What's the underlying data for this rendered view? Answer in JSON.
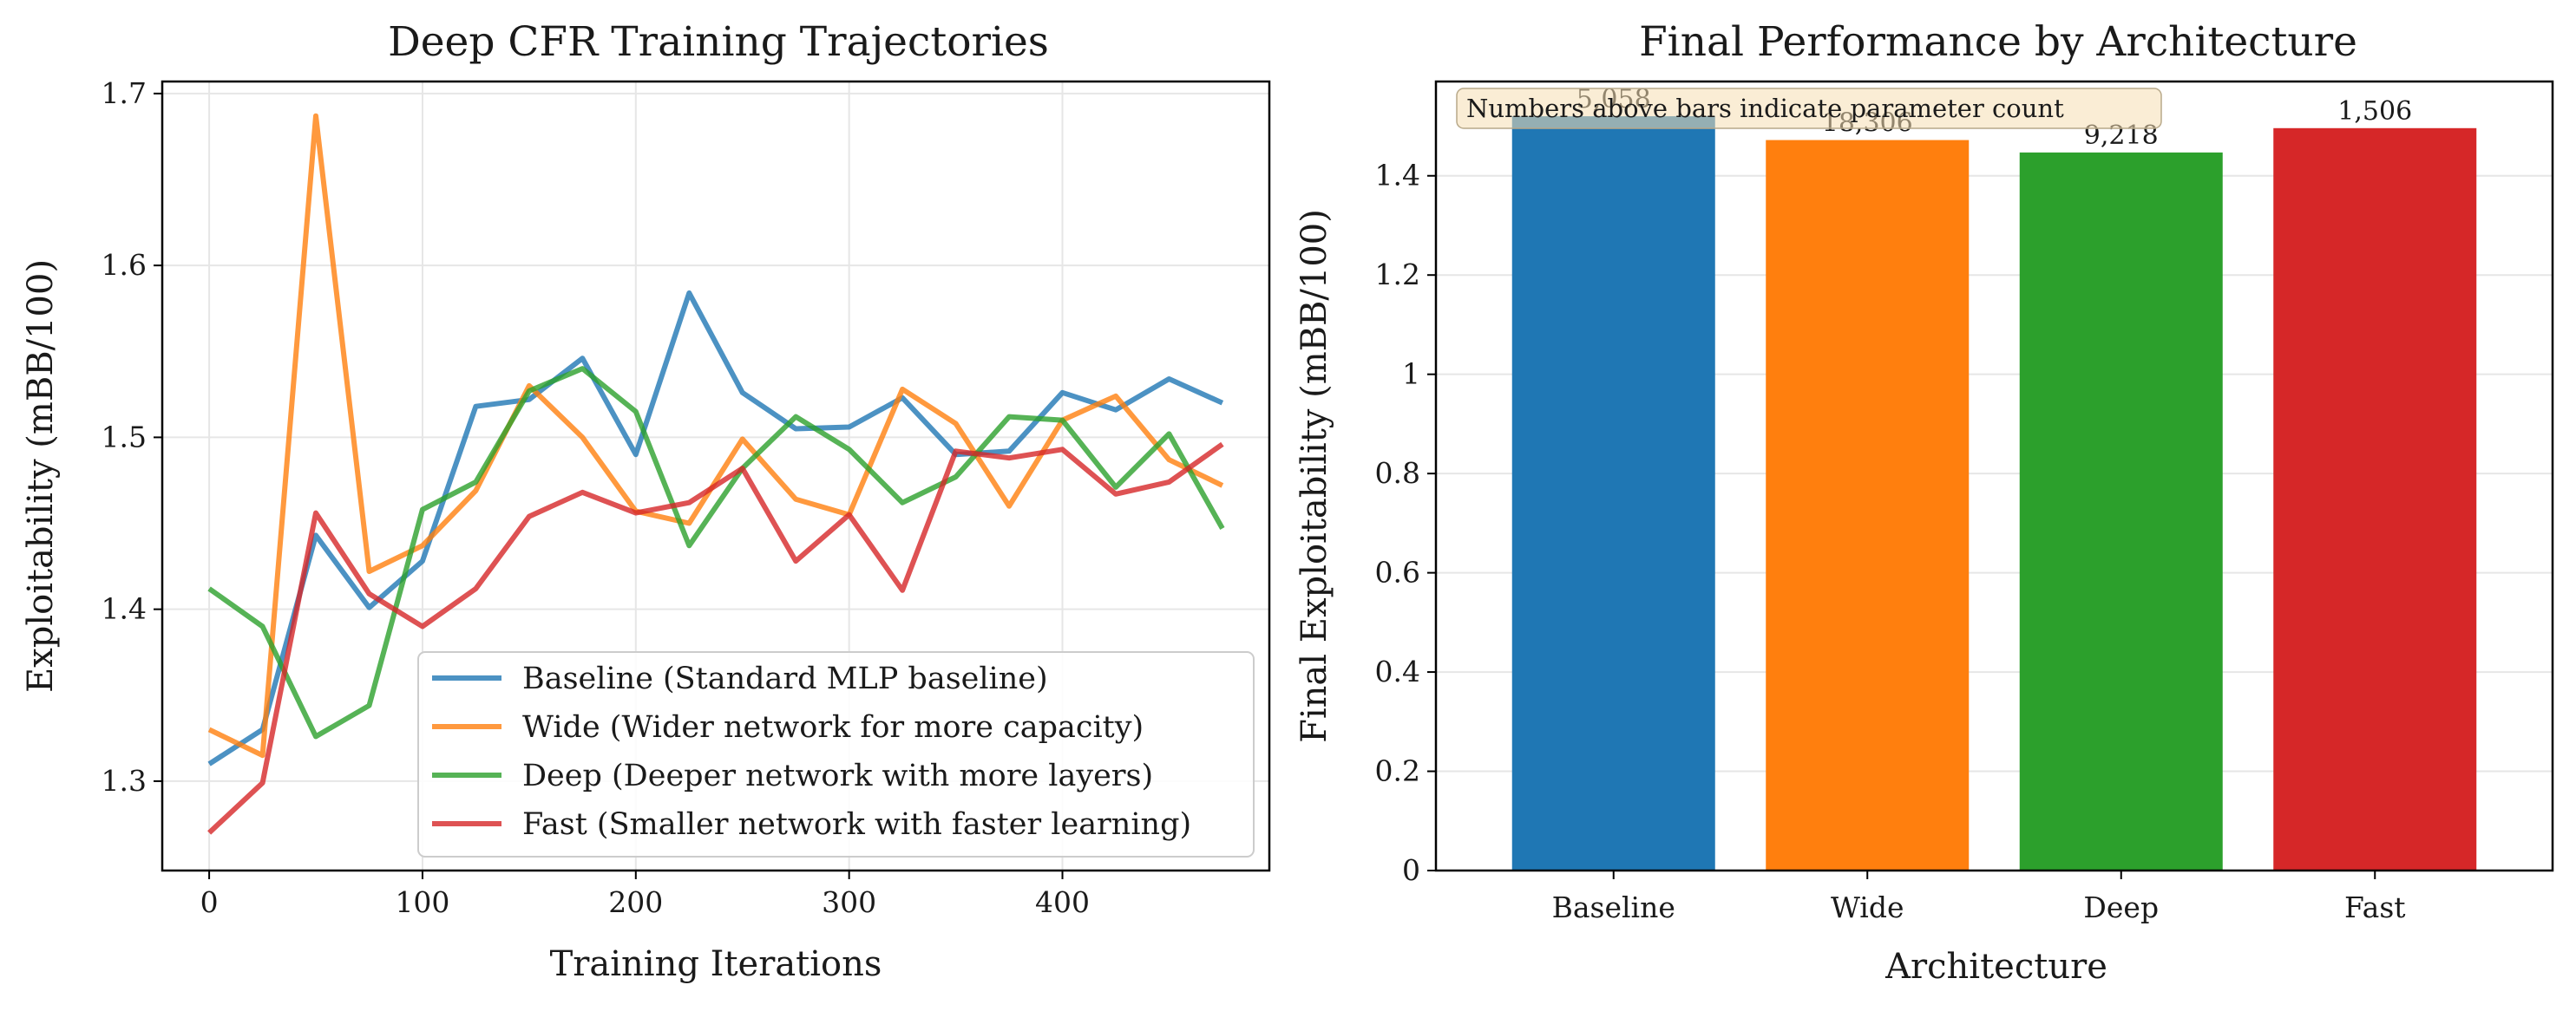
{
  "chart_data": [
    {
      "type": "line",
      "title": "Deep CFR Training Trajectories",
      "xlabel": "Training Iterations",
      "ylabel": "Exploitability (mBB/100)",
      "xlim": [
        -22,
        497
      ],
      "ylim": [
        1.248,
        1.707
      ],
      "xticks": [
        0,
        100,
        200,
        300,
        400
      ],
      "yticks": [
        1.3,
        1.4,
        1.5,
        1.6,
        1.7
      ],
      "grid": true,
      "legend_position": "lower-right",
      "x": [
        0,
        25,
        50,
        75,
        100,
        125,
        150,
        175,
        200,
        225,
        250,
        275,
        300,
        325,
        350,
        375,
        400,
        425,
        450,
        475
      ],
      "series": [
        {
          "name": "Baseline (Standard MLP baseline)",
          "color": "#1f77b4",
          "values": [
            1.31,
            1.33,
            1.443,
            1.401,
            1.428,
            1.518,
            1.522,
            1.546,
            1.49,
            1.584,
            1.526,
            1.505,
            1.506,
            1.523,
            1.49,
            1.492,
            1.526,
            1.516,
            1.534,
            1.52
          ]
        },
        {
          "name": "Wide (Wider network for more capacity)",
          "color": "#ff7f0e",
          "values": [
            1.33,
            1.315,
            1.687,
            1.422,
            1.437,
            1.469,
            1.53,
            1.5,
            1.457,
            1.45,
            1.499,
            1.464,
            1.455,
            1.528,
            1.508,
            1.46,
            1.51,
            1.524,
            1.487,
            1.472
          ]
        },
        {
          "name": "Deep (Deeper network with more layers)",
          "color": "#2ca02c",
          "values": [
            1.412,
            1.39,
            1.326,
            1.344,
            1.458,
            1.474,
            1.527,
            1.54,
            1.515,
            1.437,
            1.482,
            1.512,
            1.493,
            1.462,
            1.477,
            1.512,
            1.51,
            1.471,
            1.502,
            1.447
          ]
        },
        {
          "name": "Fast (Smaller network with faster learning)",
          "color": "#d62728",
          "values": [
            1.27,
            1.299,
            1.456,
            1.409,
            1.39,
            1.412,
            1.454,
            1.468,
            1.456,
            1.462,
            1.482,
            1.428,
            1.455,
            1.411,
            1.492,
            1.488,
            1.493,
            1.467,
            1.474,
            1.496
          ]
        }
      ]
    },
    {
      "type": "bar",
      "title": "Final Performance by Architecture",
      "xlabel": "Architecture",
      "ylabel": "Final Exploitability (mBB/100)",
      "ylim": [
        0,
        1.59
      ],
      "yticks": [
        0.0,
        0.2,
        0.4,
        0.6,
        0.8,
        1.0,
        1.2,
        1.4
      ],
      "grid": true,
      "categories": [
        "Baseline",
        "Wide",
        "Deep",
        "Fast"
      ],
      "values": [
        1.52,
        1.472,
        1.447,
        1.496
      ],
      "bar_labels": [
        "5,058",
        "18,306",
        "9,218",
        "1,506"
      ],
      "colors": [
        "#1f77b4",
        "#ff7f0e",
        "#2ca02c",
        "#d62728"
      ],
      "annotation": "Numbers above bars indicate parameter count"
    }
  ]
}
